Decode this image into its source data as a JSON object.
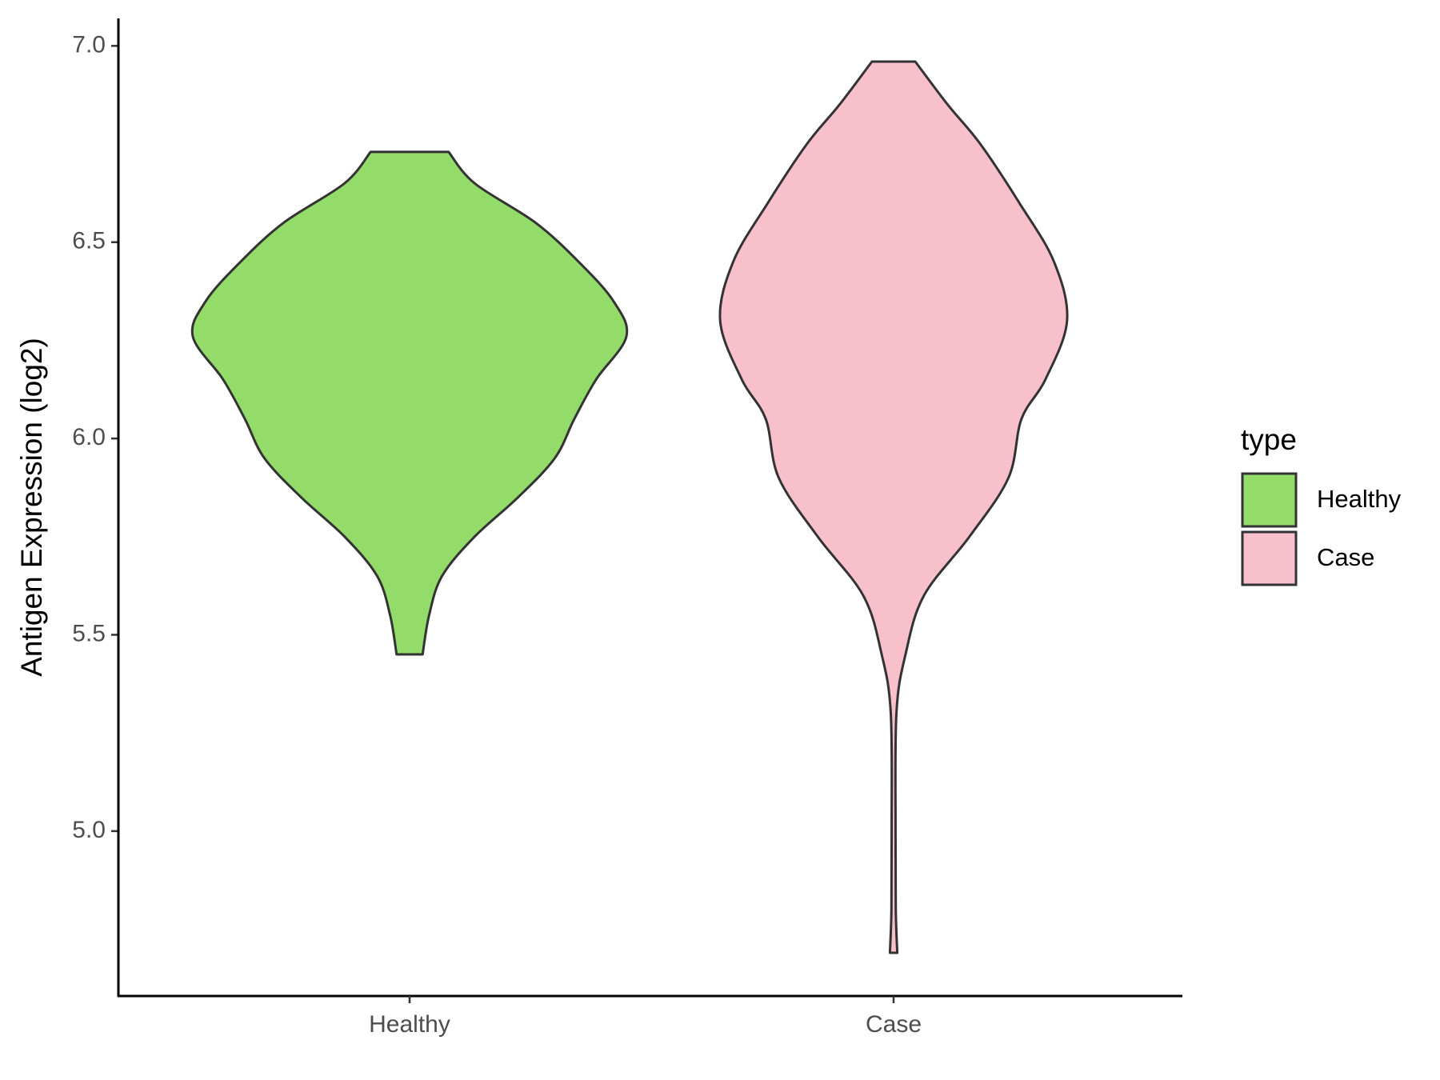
{
  "chart_data": {
    "type": "violin",
    "y_label": "Antigen Expression (log2)",
    "legend_title": "type",
    "categories": [
      "Healthy",
      "Case"
    ],
    "ylim": [
      4.58,
      7.07
    ],
    "yticks": [
      {
        "value": 5,
        "label": "5.0"
      },
      5.5,
      {
        "value": 6,
        "label": "6.0"
      },
      6.5,
      {
        "value": 7,
        "label": "7.0"
      }
    ],
    "series": [
      {
        "name": "Healthy",
        "color": "#93dc6a",
        "y": [
          6.73,
          6.65,
          6.55,
          6.45,
          6.35,
          6.26,
          6.15,
          6.05,
          5.95,
          5.85,
          5.75,
          5.65,
          5.55,
          5.45
        ],
        "density": [
          0.18,
          0.3,
          0.58,
          0.78,
          0.94,
          1.0,
          0.86,
          0.76,
          0.67,
          0.5,
          0.3,
          0.15,
          0.09,
          0.06
        ]
      },
      {
        "name": "Case",
        "color": "#f7c0cb",
        "y": [
          6.96,
          6.85,
          6.75,
          6.6,
          6.45,
          6.3,
          6.15,
          6.05,
          5.9,
          5.75,
          5.6,
          5.45,
          5.3,
          5.0,
          4.8,
          4.69
        ],
        "density": [
          0.1,
          0.25,
          0.4,
          0.58,
          0.74,
          0.8,
          0.7,
          0.59,
          0.53,
          0.35,
          0.14,
          0.055,
          0.013,
          0.009,
          0.01,
          0.017
        ]
      }
    ]
  }
}
